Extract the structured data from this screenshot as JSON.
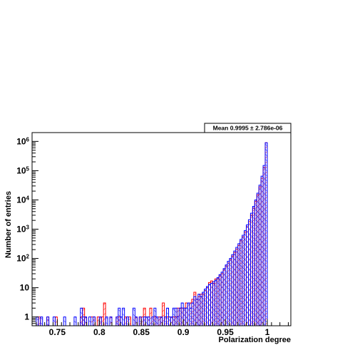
{
  "chart_data": {
    "type": "histogram",
    "title": "",
    "xlabel": "Polarization degree",
    "ylabel": "Number of entries",
    "xlim": [
      0.72,
      1.028
    ],
    "ylim": [
      0.5,
      2000000
    ],
    "y_scale": "log",
    "grid": false,
    "legend": "none",
    "stats_box": {
      "text": "Mean 0.9995 ± 2.786e-06"
    },
    "x_ticks": [
      0.75,
      0.8,
      0.85,
      0.9,
      0.95,
      1
    ],
    "x_tick_labels": [
      "0.75",
      "0.8",
      "0.85",
      "0.9",
      "0.95",
      "1"
    ],
    "y_ticks": [
      1,
      10,
      100,
      1000,
      10000,
      100000,
      1000000
    ],
    "y_tick_labels": [
      {
        "base": "1",
        "exp": ""
      },
      {
        "base": "10",
        "exp": ""
      },
      {
        "base": "10",
        "exp": "2"
      },
      {
        "base": "10",
        "exp": "3"
      },
      {
        "base": "10",
        "exp": "4"
      },
      {
        "base": "10",
        "exp": "5"
      },
      {
        "base": "10",
        "exp": "6"
      }
    ],
    "bin_width": 0.0025,
    "series": [
      {
        "name": "",
        "color": "#ff0000",
        "bins": [
          [
            0.7275,
            1
          ],
          [
            0.7375,
            1
          ],
          [
            0.7475,
            1
          ],
          [
            0.7775,
            1
          ],
          [
            0.78,
            2
          ],
          [
            0.7825,
            1
          ],
          [
            0.79,
            1
          ],
          [
            0.7925,
            1
          ],
          [
            0.7975,
            1
          ],
          [
            0.8,
            1
          ],
          [
            0.8025,
            1
          ],
          [
            0.805,
            3
          ],
          [
            0.8125,
            1
          ],
          [
            0.82,
            1
          ],
          [
            0.8225,
            1
          ],
          [
            0.83,
            1
          ],
          [
            0.8325,
            1
          ],
          [
            0.835,
            1
          ],
          [
            0.8425,
            1
          ],
          [
            0.8475,
            1
          ],
          [
            0.85,
            1
          ],
          [
            0.8525,
            2
          ],
          [
            0.8575,
            1
          ],
          [
            0.86,
            2
          ],
          [
            0.8625,
            1
          ],
          [
            0.865,
            1
          ],
          [
            0.87,
            1
          ],
          [
            0.8725,
            1
          ],
          [
            0.875,
            3
          ],
          [
            0.8775,
            1
          ],
          [
            0.88,
            1
          ],
          [
            0.8825,
            1
          ],
          [
            0.885,
            1
          ],
          [
            0.8875,
            1
          ],
          [
            0.89,
            1
          ],
          [
            0.8925,
            2
          ],
          [
            0.895,
            2
          ],
          [
            0.8975,
            2
          ],
          [
            0.9,
            2
          ],
          [
            0.9025,
            3
          ],
          [
            0.905,
            3
          ],
          [
            0.9075,
            3
          ],
          [
            0.91,
            4
          ],
          [
            0.9125,
            7
          ],
          [
            0.915,
            4
          ],
          [
            0.9175,
            5
          ],
          [
            0.92,
            6
          ],
          [
            0.9225,
            6
          ],
          [
            0.925,
            8
          ],
          [
            0.9275,
            10
          ],
          [
            0.93,
            15
          ],
          [
            0.9325,
            17
          ],
          [
            0.935,
            14
          ],
          [
            0.9375,
            20
          ],
          [
            0.94,
            20
          ],
          [
            0.9425,
            25
          ],
          [
            0.945,
            30
          ],
          [
            0.9475,
            40
          ],
          [
            0.95,
            55
          ],
          [
            0.9525,
            70
          ],
          [
            0.955,
            90
          ],
          [
            0.9575,
            120
          ],
          [
            0.96,
            160
          ],
          [
            0.9625,
            210
          ],
          [
            0.965,
            280
          ],
          [
            0.9675,
            400
          ],
          [
            0.97,
            550
          ],
          [
            0.9725,
            800
          ],
          [
            0.975,
            1200
          ],
          [
            0.9775,
            1800
          ],
          [
            0.98,
            3000
          ],
          [
            0.9825,
            5200
          ],
          [
            0.985,
            9000
          ],
          [
            0.9875,
            15000
          ],
          [
            0.99,
            28000
          ],
          [
            0.9925,
            55000
          ],
          [
            0.995,
            130000
          ],
          [
            0.9975,
            900000
          ]
        ]
      },
      {
        "name": "",
        "color": "#0000ff",
        "bins": [
          [
            0.725,
            1
          ],
          [
            0.73,
            1
          ],
          [
            0.7375,
            1
          ],
          [
            0.745,
            1
          ],
          [
            0.7575,
            1
          ],
          [
            0.77,
            1
          ],
          [
            0.7775,
            2
          ],
          [
            0.78,
            1
          ],
          [
            0.7825,
            1
          ],
          [
            0.7875,
            1
          ],
          [
            0.7925,
            1
          ],
          [
            0.8,
            1
          ],
          [
            0.8075,
            1
          ],
          [
            0.8125,
            1
          ],
          [
            0.82,
            1
          ],
          [
            0.8225,
            2
          ],
          [
            0.825,
            1
          ],
          [
            0.8275,
            2
          ],
          [
            0.8325,
            1
          ],
          [
            0.84,
            2
          ],
          [
            0.8425,
            1
          ],
          [
            0.8475,
            1
          ],
          [
            0.8525,
            1
          ],
          [
            0.855,
            1
          ],
          [
            0.8575,
            1
          ],
          [
            0.8625,
            1
          ],
          [
            0.865,
            2
          ],
          [
            0.8675,
            1
          ],
          [
            0.8725,
            1
          ],
          [
            0.8775,
            1
          ],
          [
            0.88,
            2
          ],
          [
            0.8825,
            1
          ],
          [
            0.885,
            1
          ],
          [
            0.8875,
            2
          ],
          [
            0.89,
            2
          ],
          [
            0.8925,
            1
          ],
          [
            0.895,
            2
          ],
          [
            0.8975,
            3
          ],
          [
            0.9,
            2
          ],
          [
            0.9025,
            2
          ],
          [
            0.905,
            3
          ],
          [
            0.9075,
            2
          ],
          [
            0.91,
            3
          ],
          [
            0.9125,
            5
          ],
          [
            0.915,
            4
          ],
          [
            0.9175,
            6
          ],
          [
            0.92,
            5
          ],
          [
            0.9225,
            7
          ],
          [
            0.925,
            9
          ],
          [
            0.9275,
            11
          ],
          [
            0.93,
            13
          ],
          [
            0.9325,
            14
          ],
          [
            0.935,
            16
          ],
          [
            0.9375,
            18
          ],
          [
            0.94,
            22
          ],
          [
            0.9425,
            28
          ],
          [
            0.945,
            34
          ],
          [
            0.9475,
            45
          ],
          [
            0.95,
            60
          ],
          [
            0.9525,
            80
          ],
          [
            0.955,
            100
          ],
          [
            0.9575,
            135
          ],
          [
            0.96,
            180
          ],
          [
            0.9625,
            240
          ],
          [
            0.965,
            320
          ],
          [
            0.9675,
            450
          ],
          [
            0.97,
            620
          ],
          [
            0.9725,
            900
          ],
          [
            0.975,
            1400
          ],
          [
            0.9775,
            2100
          ],
          [
            0.98,
            3500
          ],
          [
            0.9825,
            6000
          ],
          [
            0.985,
            10000
          ],
          [
            0.9875,
            17000
          ],
          [
            0.99,
            32000
          ],
          [
            0.9925,
            65000
          ],
          [
            0.995,
            150000
          ],
          [
            0.9975,
            900000
          ]
        ]
      }
    ]
  }
}
